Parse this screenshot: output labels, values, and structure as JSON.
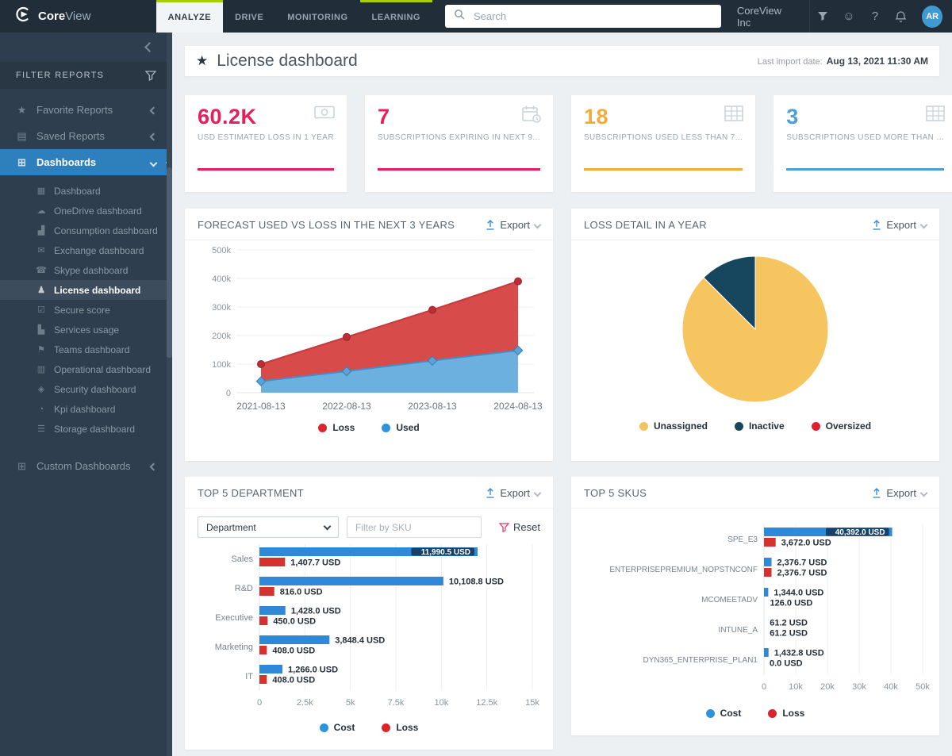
{
  "topbar": {
    "brand_core": "Core",
    "brand_view": "View",
    "tabs": [
      {
        "label": "ANALYZE",
        "active": true,
        "accent": true
      },
      {
        "label": "DRIVE",
        "active": false,
        "accent": false
      },
      {
        "label": "MONITORING",
        "active": false,
        "accent": false
      },
      {
        "label": "LEARNING",
        "active": false,
        "accent": true
      }
    ],
    "search_placeholder": "Search",
    "tenant": "CoreView Inc",
    "icons": [
      "filter-icon",
      "smiley-icon",
      "help-icon",
      "bell-icon"
    ],
    "avatar_initials": "AR",
    "accent_color": "#a6ce02"
  },
  "sidebar": {
    "filter_reports_label": "FILTER REPORTS",
    "groups": [
      {
        "label": "Favorite Reports",
        "icon": "star-icon",
        "chevron": "left",
        "active": false
      },
      {
        "label": "Saved Reports",
        "icon": "save-icon",
        "chevron": "left",
        "active": false
      },
      {
        "label": "Dashboards",
        "icon": "dashboards-icon",
        "chevron": "down",
        "active": true
      }
    ],
    "dashboard_items": [
      {
        "label": "Dashboard",
        "icon": "dashboard-icon",
        "active": false
      },
      {
        "label": "OneDrive dashboard",
        "icon": "onedrive-icon",
        "active": false
      },
      {
        "label": "Consumption dashboard",
        "icon": "consumption-icon",
        "active": false
      },
      {
        "label": "Exchange dashboard",
        "icon": "exchange-icon",
        "active": false
      },
      {
        "label": "Skype dashboard",
        "icon": "skype-icon",
        "active": false
      },
      {
        "label": "License dashboard",
        "icon": "license-icon",
        "active": true
      },
      {
        "label": "Secure score",
        "icon": "secure-score-icon",
        "active": false
      },
      {
        "label": "Services usage",
        "icon": "services-usage-icon",
        "active": false
      },
      {
        "label": "Teams dashboard",
        "icon": "teams-icon",
        "active": false
      },
      {
        "label": "Operational dashboard",
        "icon": "operational-icon",
        "active": false
      },
      {
        "label": "Security dashboard",
        "icon": "security-icon",
        "active": false
      },
      {
        "label": "Kpi dashboard",
        "icon": "kpi-icon",
        "active": false
      },
      {
        "label": "Storage dashboard",
        "icon": "storage-icon",
        "active": false
      }
    ],
    "custom_dashboards_label": "Custom Dashboards",
    "active_color": "#2e80bd"
  },
  "header": {
    "title": "License dashboard",
    "last_import_label": "Last import date:",
    "last_import_value": "Aug 13, 2021 11:30 AM"
  },
  "kpi_cards": [
    {
      "value": "60.2K",
      "label": "USD ESTIMATED LOSS IN 1 YEAR",
      "accent": "#e91c5c",
      "icon": "money-icon"
    },
    {
      "value": "7",
      "label": "SUBSCRIPTIONS EXPIRING IN NEXT 9...",
      "accent": "#e91c5c",
      "icon": "calendar-expire-icon"
    },
    {
      "value": "18",
      "label": "SUBSCRIPTIONS USED LESS THAN 7...",
      "accent": "#f2ac3c",
      "icon": "table-icon"
    },
    {
      "value": "3",
      "label": "SUBSCRIPTIONS USED MORE THAN ...",
      "accent": "#4aa0d8",
      "icon": "table-icon"
    }
  ],
  "panels": {
    "forecast": {
      "title": "FORECAST USED VS LOSS IN THE NEXT 3 YEARS",
      "export_label": "Export"
    },
    "loss_detail": {
      "title": "LOSS DETAIL IN A YEAR",
      "export_label": "Export"
    },
    "top_department": {
      "title": "TOP 5 DEPARTMENT",
      "export_label": "Export",
      "dimension_select_value": "Department",
      "sku_filter_placeholder": "Filter by SKU",
      "reset_label": "Reset"
    },
    "top_skus": {
      "title": "TOP 5 SKUS",
      "export_label": "Export"
    }
  },
  "chart_data": [
    {
      "id": "forecast_used_vs_loss",
      "type": "area",
      "stacked": true,
      "x": [
        "2021-08-13",
        "2022-08-13",
        "2023-08-13",
        "2024-08-13"
      ],
      "series": [
        {
          "name": "Loss",
          "fill": "#d84b4b",
          "line": "#c53a3e",
          "marker": "#b92f36",
          "marker_shape": "circle",
          "values": [
            100000,
            195000,
            290000,
            390000
          ],
          "note": "values are stacked top boundary (Used + Loss)"
        },
        {
          "name": "Used",
          "fill": "#6cb0e0",
          "line": "#4090cc",
          "marker": "#5aa3d8",
          "marker_shape": "diamond",
          "values": [
            40000,
            75000,
            112000,
            148000
          ]
        }
      ],
      "ylim": [
        0,
        500000
      ],
      "yticks": [
        "0",
        "100k",
        "200k",
        "300k",
        "400k",
        "500k"
      ],
      "grid": true,
      "legend": [
        {
          "label": "Loss",
          "color": "#d8262c"
        },
        {
          "label": "Used",
          "color": "#2e93dd"
        }
      ],
      "legend_position": "bottom"
    },
    {
      "id": "loss_detail_pie",
      "type": "pie",
      "slices": [
        {
          "label": "Unassigned",
          "value": 87.5,
          "color": "#f7c55f"
        },
        {
          "label": "Inactive",
          "value": 12.5,
          "color": "#17465f"
        },
        {
          "label": "Oversized",
          "value": 0,
          "color": "#e01f2f"
        }
      ],
      "legend": [
        {
          "label": "Unassigned",
          "color": "#f1c45f"
        },
        {
          "label": "Inactive",
          "color": "#17465f"
        },
        {
          "label": "Oversized",
          "color": "#e01f2f"
        }
      ],
      "legend_position": "bottom"
    },
    {
      "id": "top_5_department",
      "type": "bar",
      "orientation": "horizontal",
      "categories": [
        "Sales",
        "R&D",
        "Executive",
        "Marketing",
        "IT"
      ],
      "series": [
        {
          "name": "Cost",
          "color": "#2f89d8",
          "values": [
            11990.5,
            10108.8,
            1428.0,
            3848.4,
            1266.0
          ],
          "labels": [
            "11,990.5 USD",
            "10,108.8 USD",
            "1,428.0 USD",
            "3,848.4 USD",
            "1,266.0 USD"
          ],
          "label_inside": [
            true,
            false,
            false,
            false,
            false
          ]
        },
        {
          "name": "Loss",
          "color": "#d5312e",
          "values": [
            1407.7,
            816.0,
            450.0,
            408.0,
            408.0
          ],
          "labels": [
            "1,407.7 USD",
            "816.0 USD",
            "450.0 USD",
            "408.0 USD",
            "408.0 USD"
          ],
          "label_inside": [
            false,
            false,
            false,
            false,
            false
          ]
        }
      ],
      "xlim": [
        0,
        15000
      ],
      "xticks": [
        {
          "v": 0,
          "label": "0"
        },
        {
          "v": 2500,
          "label": "2.5k"
        },
        {
          "v": 5000,
          "label": "5k"
        },
        {
          "v": 7500,
          "label": "7.5k"
        },
        {
          "v": 10000,
          "label": "10k"
        },
        {
          "v": 12500,
          "label": "12.5k"
        },
        {
          "v": 15000,
          "label": "15k"
        }
      ],
      "grid": true,
      "legend": [
        {
          "label": "Cost",
          "color": "#2e93dd"
        },
        {
          "label": "Loss",
          "color": "#d8262c"
        }
      ],
      "legend_position": "bottom"
    },
    {
      "id": "top_5_skus",
      "type": "bar",
      "orientation": "horizontal",
      "categories": [
        "SPE_E3",
        "ENTERPRISEPREMIUM_NOPSTNCONF",
        "MCOMEETADV",
        "INTUNE_A",
        "DYN365_ENTERPRISE_PLAN1"
      ],
      "series": [
        {
          "name": "Cost",
          "color": "#2f89d8",
          "values": [
            40392.0,
            2376.7,
            1344.0,
            61.2,
            1432.8
          ],
          "labels": [
            "40,392.0 USD",
            "2,376.7 USD",
            "1,344.0 USD",
            "61.2 USD",
            "1,432.8 USD"
          ],
          "label_inside": [
            true,
            false,
            false,
            false,
            false
          ]
        },
        {
          "name": "Loss",
          "color": "#d5312e",
          "values": [
            3672.0,
            2376.7,
            126.0,
            61.2,
            0.0
          ],
          "labels": [
            "3,672.0 USD",
            "2,376.7 USD",
            "126.0 USD",
            "61.2 USD",
            "0.0 USD"
          ],
          "label_inside": [
            false,
            false,
            false,
            false,
            false
          ]
        }
      ],
      "xlim": [
        0,
        50000
      ],
      "xticks": [
        {
          "v": 0,
          "label": "0"
        },
        {
          "v": 10000,
          "label": "10k"
        },
        {
          "v": 20000,
          "label": "20k"
        },
        {
          "v": 30000,
          "label": "30k"
        },
        {
          "v": 40000,
          "label": "40k"
        },
        {
          "v": 50000,
          "label": "50k"
        }
      ],
      "grid": true,
      "legend": [
        {
          "label": "Cost",
          "color": "#2e93dd"
        },
        {
          "label": "Loss",
          "color": "#d8262c"
        }
      ],
      "legend_position": "bottom"
    }
  ]
}
